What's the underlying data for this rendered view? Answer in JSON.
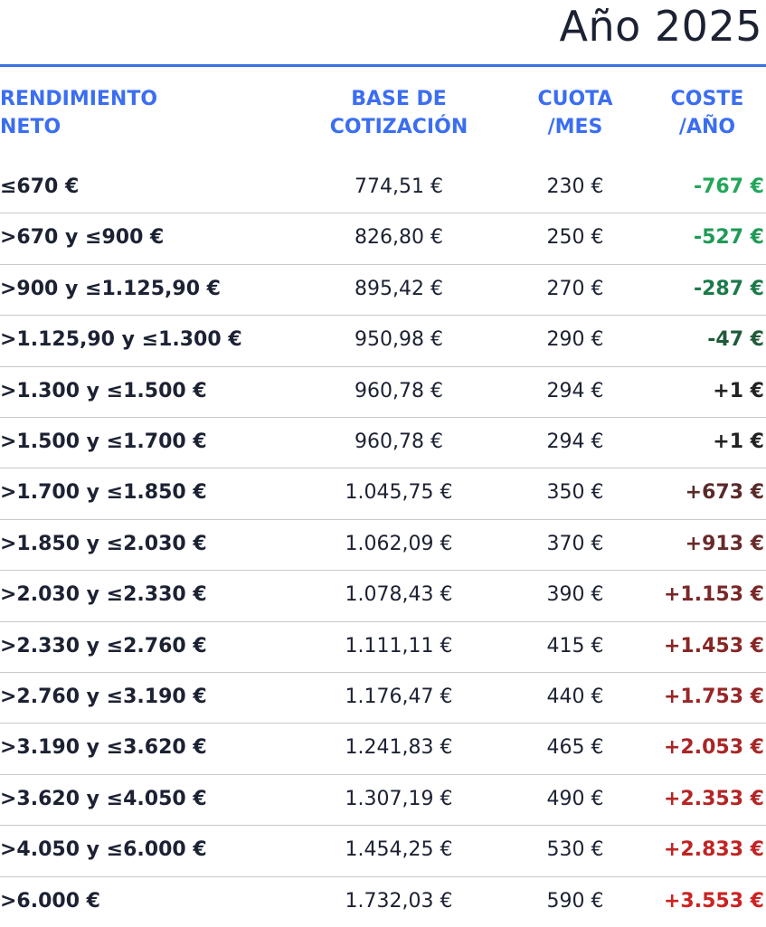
{
  "header": {
    "title": "Año 2025"
  },
  "table": {
    "columns": [
      "RENDIMIENTO NETO",
      "BASE DE COTIZACIÓN",
      "CUOTA /MES",
      "COSTE /AÑO"
    ],
    "rows": [
      [
        "≤670 €",
        "774,51 €",
        "230 €",
        "-767 €"
      ],
      [
        ">670 y ≤900 €",
        "826,80 €",
        "250 €",
        "-527 €"
      ],
      [
        ">900 y ≤1.125,90 €",
        "895,42 €",
        "270 €",
        "-287 €"
      ],
      [
        ">1.125,90 y ≤1.300 €",
        "950,98 €",
        "290 €",
        "-47 €"
      ],
      [
        ">1.300 y ≤1.500 €",
        "960,78 €",
        "294 €",
        "+1 €"
      ],
      [
        ">1.500 y ≤1.700 €",
        "960,78 €",
        "294 €",
        "+1 €"
      ],
      [
        ">1.700 y ≤1.850 €",
        "1.045,75 €",
        "350 €",
        "+673 €"
      ],
      [
        ">1.850 y ≤2.030 €",
        "1.062,09 €",
        "370 €",
        "+913 €"
      ],
      [
        ">2.030 y ≤2.330 €",
        "1.078,43 €",
        "390 €",
        "+1.153 €"
      ],
      [
        ">2.330 y ≤2.760 €",
        "1.111,11 €",
        "415 €",
        "+1.453 €"
      ],
      [
        ">2.760 y ≤3.190 €",
        "1.176,47 €",
        "440 €",
        "+1.753 €"
      ],
      [
        ">3.190 y ≤3.620 €",
        "1.241,83 €",
        "465 €",
        "+2.053 €"
      ],
      [
        ">3.620 y ≤4.050 €",
        "1.307,19 €",
        "490 €",
        "+2.353 €"
      ],
      [
        ">4.050 y ≤6.000 €",
        "1.454,25 €",
        "530 €",
        "+2.833 €"
      ],
      [
        ">6.000 €",
        "1.732,03 €",
        "590 €",
        "+3.553 €"
      ]
    ]
  }
}
